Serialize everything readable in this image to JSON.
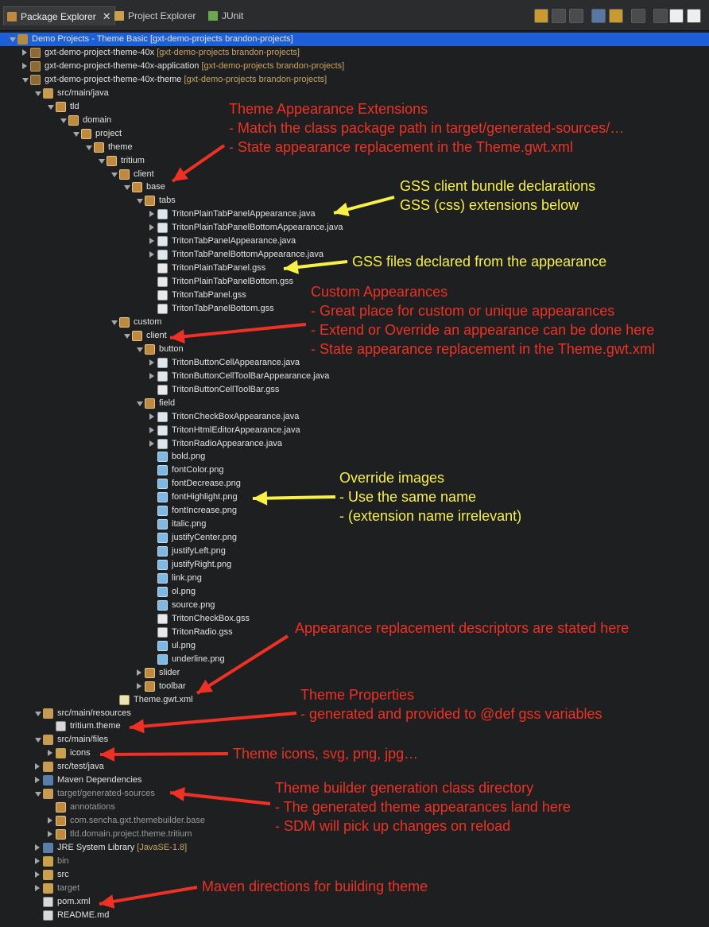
{
  "tabs": [
    {
      "label": "Package Explorer",
      "close": "✕",
      "icon": "package-explorer-icon"
    },
    {
      "label": "Project Explorer",
      "icon": "project-explorer-icon"
    },
    {
      "label": "JUnit",
      "icon": "junit-icon"
    }
  ],
  "colors": {
    "selection": "#1c5fd6",
    "red_annotation": "#ee3124",
    "yellow_annotation": "#f7f049",
    "decoration": "#c8a466"
  },
  "tree": [
    {
      "label": "Demo Projects - Theme Basic [gxt-demo-projects brandon-projects]",
      "arrow": "down",
      "icon": "working-set-icon",
      "selected": true
    },
    {
      "label": "gxt-demo-project-theme-40x",
      "dec": " [gxt-demo-projects brandon-projects]",
      "arrow": "right",
      "icon": "maven-project-icon"
    },
    {
      "label": "gxt-demo-project-theme-40x-application",
      "dec": " [gxt-demo-projects brandon-projects]",
      "arrow": "right",
      "icon": "maven-project-icon"
    },
    {
      "label": "gxt-demo-project-theme-40x-theme",
      "dec": " [gxt-demo-projects brandon-projects]",
      "arrow": "down",
      "icon": "maven-project-icon"
    },
    {
      "label": "src/main/java",
      "arrow": "down",
      "icon": "source-folder-icon"
    },
    {
      "label": "tld",
      "arrow": "down",
      "icon": "package-icon"
    },
    {
      "label": "domain",
      "arrow": "down",
      "icon": "package-icon"
    },
    {
      "label": "project",
      "arrow": "down",
      "icon": "package-icon"
    },
    {
      "label": "theme",
      "arrow": "down",
      "icon": "package-icon"
    },
    {
      "label": "tritium",
      "arrow": "down",
      "icon": "package-icon"
    },
    {
      "label": "client",
      "arrow": "down",
      "icon": "package-icon"
    },
    {
      "label": "base",
      "arrow": "down",
      "icon": "package-icon"
    },
    {
      "label": "tabs",
      "arrow": "down",
      "icon": "package-icon"
    },
    {
      "label": "TritonPlainTabPanelAppearance.java",
      "arrow": "right",
      "icon": "java-file-icon"
    },
    {
      "label": "TritonPlainTabPanelBottomAppearance.java",
      "arrow": "right",
      "icon": "java-file-icon"
    },
    {
      "label": "TritonTabPanelAppearance.java",
      "arrow": "right",
      "icon": "java-file-icon"
    },
    {
      "label": "TritonTabPanelBottomAppearance.java",
      "arrow": "right",
      "icon": "java-file-icon"
    },
    {
      "label": "TritonPlainTabPanel.gss",
      "arrow": "",
      "icon": "gss-file-icon"
    },
    {
      "label": "TritonPlainTabPanelBottom.gss",
      "arrow": "",
      "icon": "gss-file-icon"
    },
    {
      "label": "TritonTabPanel.gss",
      "arrow": "",
      "icon": "gss-file-icon"
    },
    {
      "label": "TritonTabPanelBottom.gss",
      "arrow": "",
      "icon": "gss-file-icon"
    },
    {
      "label": "custom",
      "arrow": "down",
      "icon": "package-icon"
    },
    {
      "label": "client",
      "arrow": "down",
      "icon": "package-icon"
    },
    {
      "label": "button",
      "arrow": "down",
      "icon": "package-icon"
    },
    {
      "label": "TritonButtonCellAppearance.java",
      "arrow": "right",
      "icon": "java-file-icon"
    },
    {
      "label": "TritonButtonCellToolBarAppearance.java",
      "arrow": "right",
      "icon": "java-file-icon"
    },
    {
      "label": "TritonButtonCellToolBar.gss",
      "arrow": "",
      "icon": "gss-file-icon"
    },
    {
      "label": "field",
      "arrow": "down",
      "icon": "package-icon"
    },
    {
      "label": "TritonCheckBoxAppearance.java",
      "arrow": "right",
      "icon": "java-file-icon"
    },
    {
      "label": "TritonHtmlEditorAppearance.java",
      "arrow": "right",
      "icon": "java-file-icon"
    },
    {
      "label": "TritonRadioAppearance.java",
      "arrow": "right",
      "icon": "java-file-icon"
    },
    {
      "label": "bold.png",
      "arrow": "",
      "icon": "png-file-icon"
    },
    {
      "label": "fontColor.png",
      "arrow": "",
      "icon": "png-file-icon"
    },
    {
      "label": "fontDecrease.png",
      "arrow": "",
      "icon": "png-file-icon"
    },
    {
      "label": "fontHighlight.png",
      "arrow": "",
      "icon": "png-file-icon"
    },
    {
      "label": "fontIncrease.png",
      "arrow": "",
      "icon": "png-file-icon"
    },
    {
      "label": "italic.png",
      "arrow": "",
      "icon": "png-file-icon"
    },
    {
      "label": "justifyCenter.png",
      "arrow": "",
      "icon": "png-file-icon"
    },
    {
      "label": "justifyLeft.png",
      "arrow": "",
      "icon": "png-file-icon"
    },
    {
      "label": "justifyRight.png",
      "arrow": "",
      "icon": "png-file-icon"
    },
    {
      "label": "link.png",
      "arrow": "",
      "icon": "png-file-icon"
    },
    {
      "label": "ol.png",
      "arrow": "",
      "icon": "png-file-icon"
    },
    {
      "label": "source.png",
      "arrow": "",
      "icon": "png-file-icon"
    },
    {
      "label": "TritonCheckBox.gss",
      "arrow": "",
      "icon": "gss-file-icon"
    },
    {
      "label": "TritonRadio.gss",
      "arrow": "",
      "icon": "gss-file-icon"
    },
    {
      "label": "ul.png",
      "arrow": "",
      "icon": "png-file-icon"
    },
    {
      "label": "underline.png",
      "arrow": "",
      "icon": "png-file-icon"
    },
    {
      "label": "slider",
      "arrow": "right",
      "icon": "package-icon"
    },
    {
      "label": "toolbar",
      "arrow": "right",
      "icon": "package-icon"
    },
    {
      "label": "Theme.gwt.xml",
      "arrow": "",
      "icon": "xml-file-icon"
    },
    {
      "label": "src/main/resources",
      "arrow": "down",
      "icon": "source-folder-icon"
    },
    {
      "label": "tritium.theme",
      "arrow": "",
      "icon": "theme-file-icon"
    },
    {
      "label": "src/main/files",
      "arrow": "down",
      "icon": "source-folder-icon"
    },
    {
      "label": "icons",
      "arrow": "right",
      "icon": "folder-icon"
    },
    {
      "label": "src/test/java",
      "arrow": "right",
      "icon": "source-folder-icon"
    },
    {
      "label": "Maven Dependencies",
      "arrow": "right",
      "icon": "library-icon"
    },
    {
      "label": "target/generated-sources",
      "arrow": "down",
      "icon": "source-folder-icon",
      "dim": true
    },
    {
      "label": "annotations",
      "arrow": "",
      "icon": "package-icon",
      "dim": true
    },
    {
      "label": "com.sencha.gxt.themebuilder.base",
      "arrow": "right",
      "icon": "package-icon",
      "dim": true
    },
    {
      "label": "tld.domain.project.theme.tritium",
      "arrow": "right",
      "icon": "package-icon",
      "dim": true
    },
    {
      "label": "JRE System Library",
      "dec": " [JavaSE-1.8]",
      "arrow": "right",
      "icon": "library-icon"
    },
    {
      "label": "bin",
      "arrow": "right",
      "icon": "folder-icon",
      "dim": true
    },
    {
      "label": "src",
      "arrow": "right",
      "icon": "folder-icon"
    },
    {
      "label": "target",
      "arrow": "right",
      "icon": "folder-icon",
      "dim": true
    },
    {
      "label": "pom.xml",
      "arrow": "",
      "icon": "maven-pom-icon"
    },
    {
      "label": "README.md",
      "arrow": "",
      "icon": "markdown-file-icon"
    }
  ],
  "annotations": [
    {
      "color": "red",
      "lines": [
        "Theme Appearance Extensions",
        "- Match the class package path in target/generated-sources/…",
        "- State appearance replacement in the Theme.gwt.xml"
      ]
    },
    {
      "color": "yellow",
      "lines": [
        "GSS client bundle declarations",
        "GSS (css) extensions below"
      ]
    },
    {
      "color": "yellow",
      "lines": [
        "GSS files declared from the appearance"
      ]
    },
    {
      "color": "red",
      "lines": [
        "Custom Appearances",
        "- Great place for custom or unique appearances",
        "- Extend or Override an appearance can be done here",
        "- State appearance replacement in the Theme.gwt.xml"
      ]
    },
    {
      "color": "yellow",
      "lines": [
        "Override images",
        "- Use the same name",
        "- (extension name irrelevant)"
      ]
    },
    {
      "color": "red",
      "lines": [
        "Appearance replacement descriptors are stated here"
      ]
    },
    {
      "color": "red",
      "lines": [
        "Theme Properties",
        " - generated and provided to @def gss variables"
      ]
    },
    {
      "color": "red",
      "lines": [
        "Theme icons, svg, png, jpg…"
      ]
    },
    {
      "color": "red",
      "lines": [
        "Theme builder generation class directory",
        "- The generated theme appearances land here",
        "- SDM will pick up changes on reload"
      ]
    },
    {
      "color": "red",
      "lines": [
        "Maven directions for building theme"
      ]
    }
  ]
}
